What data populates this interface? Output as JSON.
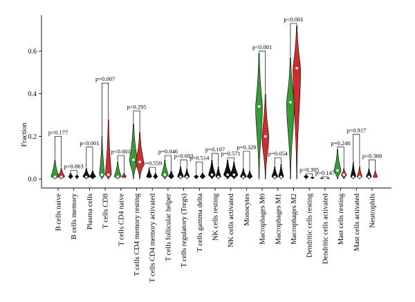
{
  "chart_data": {
    "type": "violin",
    "title": "",
    "xlabel": "",
    "ylabel": "Fraction",
    "ylim": [
      0,
      0.75
    ],
    "yticks": [
      0.0,
      0.2,
      0.4,
      0.6
    ],
    "ytick_labels": [
      "0.0",
      "0.2",
      "0.4",
      "0.6"
    ],
    "grid": false,
    "colors": {
      "group1": "#3a9a3a",
      "group2": "#cc2f2f",
      "dark": "#111111"
    },
    "categories": [
      "B cells naive",
      "B cells memory",
      "Plasma cells",
      "T cells CD8",
      "T cells CD4 naive",
      "T cells CD4 memory resting",
      "T cells CD4 memory activated",
      "T cells follicular helper",
      "T cells regulatory (Tregs)",
      "T cells gamma delta",
      "NK cells resting",
      "NK cells activated",
      "Monocytes",
      "Macrophages M0",
      "Macrophages M1",
      "Macrophages M2",
      "Dendritic cells resting",
      "Dendritic cells activated",
      "Mast cells resting",
      "Mast cells activated",
      "Neutrophils"
    ],
    "p_values": [
      "p=0.177",
      "p=0.863",
      "p<0.001",
      "p=0.007",
      "p<0.001",
      "p=0.295",
      "p=0.559",
      "p=0.046",
      "p=0.693",
      "p=0.514",
      "p=0.107",
      "p=0.571",
      "p=0.329",
      "p<0.001",
      "p=0.054",
      "p<0.001",
      "p=0.395",
      "p=0.147",
      "p=0.240",
      "p=0.917",
      "p=0.368"
    ],
    "series": [
      {
        "max": [
          0.09,
          0.03,
          0.05,
          0.2,
          0.08,
          0.26,
          0.05,
          0.09,
          0.06,
          0.02,
          0.09,
          0.09,
          0.05,
          0.59,
          0.06,
          0.57,
          0.02,
          0.005,
          0.14,
          0.08,
          0.05
        ],
        "median": [
          0.01,
          0.0,
          0.01,
          0.02,
          0.01,
          0.09,
          0.0,
          0.02,
          0.01,
          0.0,
          0.02,
          0.02,
          0.01,
          0.34,
          0.01,
          0.36,
          0.0,
          0.0,
          0.04,
          0.01,
          0.01
        ],
        "width": [
          0.9,
          0.5,
          0.8,
          0.6,
          0.8,
          0.9,
          0.6,
          0.8,
          0.7,
          0.5,
          0.8,
          0.9,
          0.7,
          0.8,
          0.7,
          0.9,
          0.5,
          0.4,
          0.8,
          0.6,
          0.6
        ],
        "color": [
          "green",
          "dark",
          "dark",
          "green",
          "green",
          "green",
          "dark",
          "green",
          "dark",
          "dark",
          "dark",
          "dark",
          "dark",
          "green",
          "dark",
          "green",
          "dark",
          "dark",
          "green",
          "dark",
          "dark"
        ]
      },
      {
        "max": [
          0.05,
          0.02,
          0.04,
          0.28,
          0.03,
          0.22,
          0.03,
          0.04,
          0.05,
          0.03,
          0.06,
          0.08,
          0.04,
          0.4,
          0.07,
          0.72,
          0.01,
          0.005,
          0.05,
          0.06,
          0.04
        ],
        "median": [
          0.01,
          0.0,
          0.0,
          0.02,
          0.0,
          0.08,
          0.0,
          0.01,
          0.01,
          0.0,
          0.01,
          0.02,
          0.0,
          0.2,
          0.01,
          0.52,
          0.0,
          0.0,
          0.02,
          0.01,
          0.0
        ],
        "width": [
          0.8,
          0.4,
          0.7,
          0.7,
          0.5,
          0.9,
          0.5,
          0.6,
          0.6,
          0.6,
          0.6,
          0.9,
          0.6,
          0.8,
          0.6,
          0.9,
          0.4,
          0.3,
          0.6,
          0.6,
          0.5
        ],
        "color": [
          "red",
          "dark",
          "dark",
          "red",
          "red",
          "red",
          "dark",
          "dark",
          "dark",
          "dark",
          "dark",
          "dark",
          "dark",
          "red",
          "dark",
          "red",
          "dark",
          "dark",
          "red",
          "red",
          "red"
        ]
      }
    ],
    "bracket_top": [
      0.2,
      0.04,
      0.15,
      0.45,
      0.11,
      0.32,
      0.055,
      0.11,
      0.09,
      0.08,
      0.12,
      0.1,
      0.13,
      0.6,
      0.1,
      0.73,
      0.025,
      0.01,
      0.15,
      0.21,
      0.09
    ]
  }
}
